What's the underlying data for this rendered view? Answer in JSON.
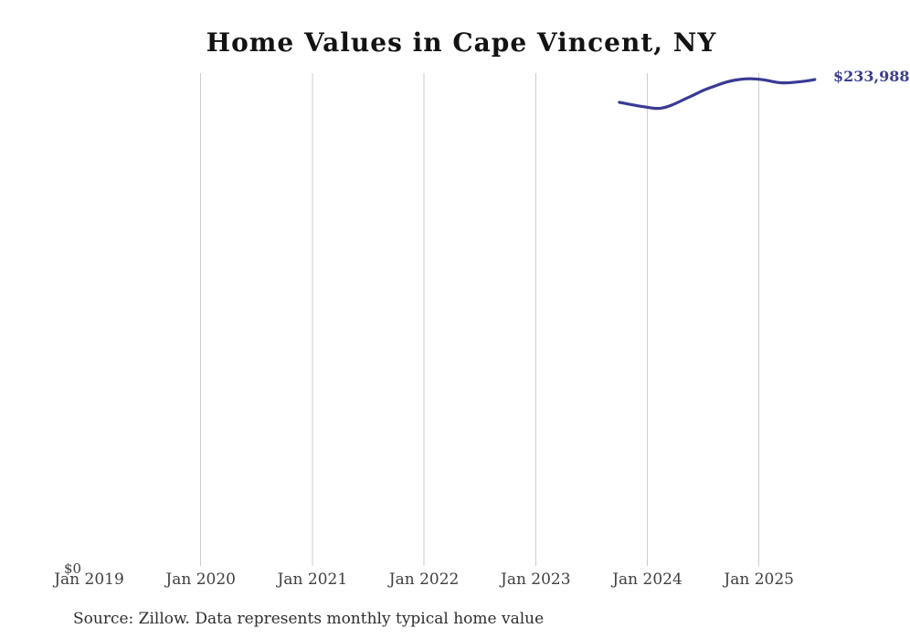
{
  "title": "Home Values in Cape Vincent, NY",
  "source_note": "Source: Zillow. Data represents monthly typical home value",
  "colors": {
    "background": "#ffffff",
    "title": "#131313",
    "line": "#3a3a94",
    "end_label": "#3b3e92",
    "gridline": "#cccccc",
    "tick_label": "#3f3f3f",
    "source": "#2e2e2e"
  },
  "chart_data": {
    "type": "line",
    "title": "Home Values in Cape Vincent, NY",
    "xlabel": "",
    "ylabel": "",
    "unit": "USD",
    "grid": "vertical-gridlines-only",
    "legend": "none",
    "ylim": [
      0,
      237000
    ],
    "x_tick_labels": [
      "Jan 2019",
      "Jan 2020",
      "Jan 2021",
      "Jan 2022",
      "Jan 2023",
      "Jan 2024",
      "Jan 2025"
    ],
    "y_zero_label": "$0",
    "end_value_label": "$233,988",
    "series_name": "Monthly typical home value",
    "months": [
      "2023-09",
      "2023-10",
      "2023-11",
      "2023-12",
      "2024-01",
      "2024-02",
      "2024-03",
      "2024-04",
      "2024-05",
      "2024-06",
      "2024-07",
      "2024-08",
      "2024-09",
      "2024-10",
      "2024-11",
      "2024-12",
      "2025-01",
      "2025-02",
      "2025-03",
      "2025-04",
      "2025-05",
      "2025-06"
    ],
    "values": [
      223100,
      222200,
      221400,
      220700,
      220000,
      220650,
      222400,
      224600,
      226600,
      228800,
      230500,
      232100,
      233400,
      234100,
      234400,
      234200,
      233500,
      232500,
      232300,
      232700,
      233200,
      233988
    ]
  }
}
